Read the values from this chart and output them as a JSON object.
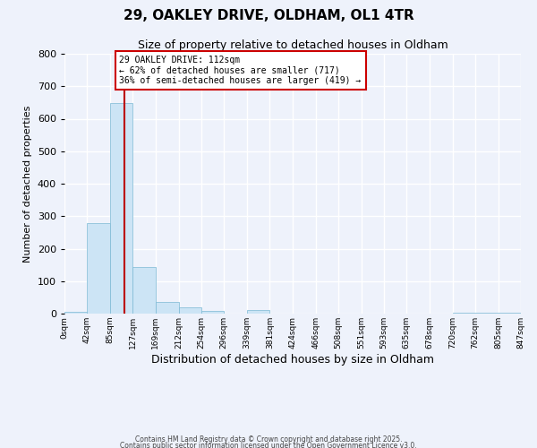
{
  "title_line1": "29, OAKLEY DRIVE, OLDHAM, OL1 4TR",
  "title_line2": "Size of property relative to detached houses in Oldham",
  "xlabel": "Distribution of detached houses by size in Oldham",
  "ylabel": "Number of detached properties",
  "bar_values": [
    5,
    278,
    648,
    143,
    37,
    20,
    8,
    0,
    10,
    0,
    0,
    0,
    0,
    0,
    0,
    0,
    0,
    2
  ],
  "bin_edges": [
    0,
    42,
    85,
    127,
    169,
    212,
    254,
    296,
    339,
    381,
    424,
    466,
    508,
    551,
    593,
    635,
    678,
    720,
    847
  ],
  "tick_positions": [
    0,
    42,
    85,
    127,
    169,
    212,
    254,
    296,
    339,
    381,
    424,
    466,
    508,
    551,
    593,
    635,
    678,
    720,
    762,
    805,
    847
  ],
  "tick_labels": [
    "0sqm",
    "42sqm",
    "85sqm",
    "127sqm",
    "169sqm",
    "212sqm",
    "254sqm",
    "296sqm",
    "339sqm",
    "381sqm",
    "424sqm",
    "466sqm",
    "508sqm",
    "551sqm",
    "593sqm",
    "635sqm",
    "678sqm",
    "720sqm",
    "762sqm",
    "805sqm",
    "847sqm"
  ],
  "bar_color": "#cce4f5",
  "bar_edge_color": "#7bb8d4",
  "bg_color": "#eef2fb",
  "grid_color": "#ffffff",
  "vline_x": 112,
  "vline_color": "#bb0000",
  "annotation_text": "29 OAKLEY DRIVE: 112sqm\n← 62% of detached houses are smaller (717)\n36% of semi-detached houses are larger (419) →",
  "annotation_box_color": "#cc0000",
  "ylim": [
    0,
    800
  ],
  "yticks": [
    0,
    100,
    200,
    300,
    400,
    500,
    600,
    700,
    800
  ],
  "footer_line1": "Contains HM Land Registry data © Crown copyright and database right 2025.",
  "footer_line2": "Contains public sector information licensed under the Open Government Licence v3.0."
}
